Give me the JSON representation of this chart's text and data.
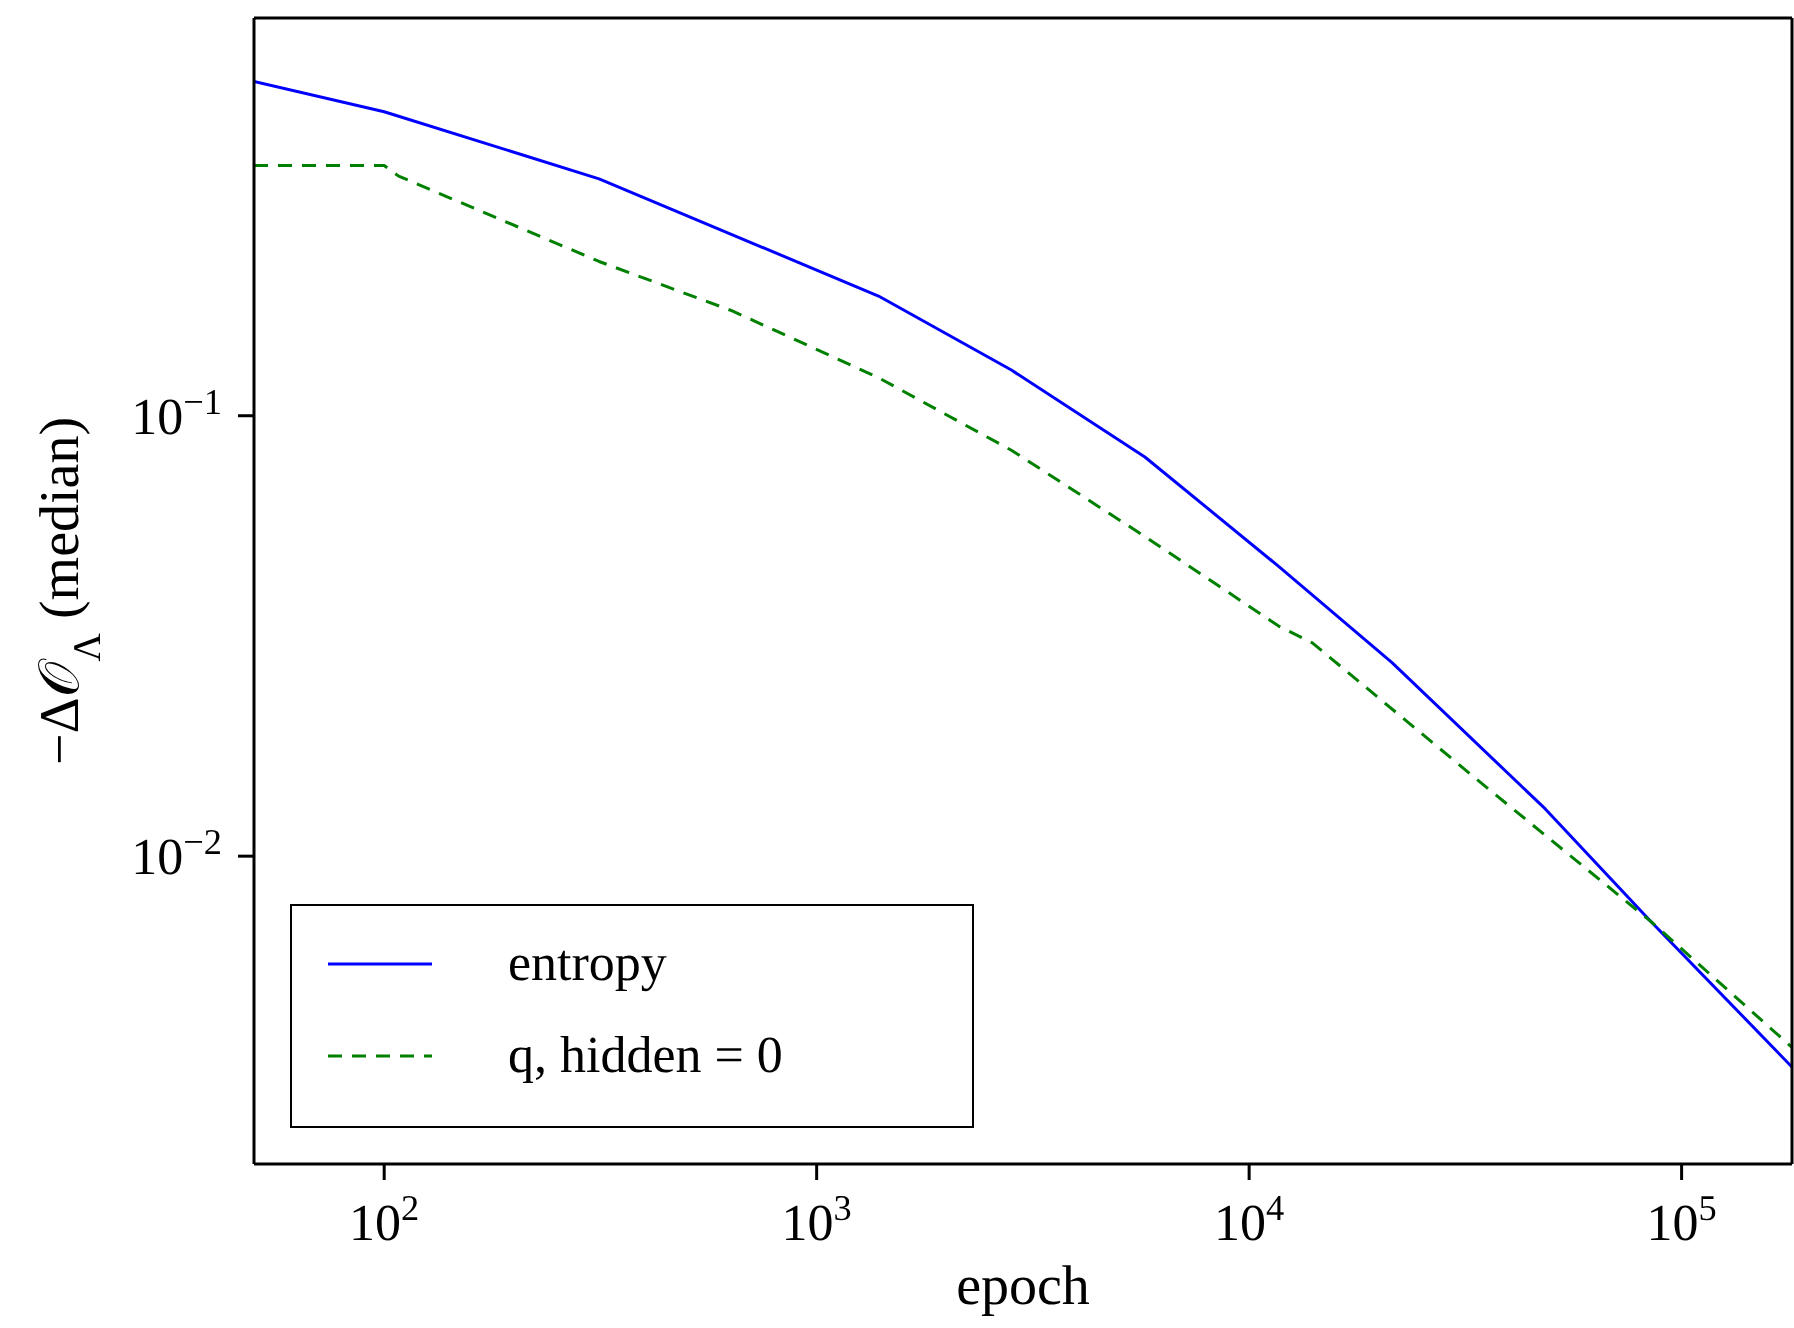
{
  "chart_data": {
    "type": "line",
    "xlabel": "epoch",
    "ylabel": "−Δ𝒪$_{Λ}$ (median)",
    "log": "xy",
    "xlim": [
      50,
      180000
    ],
    "ylim": [
      0.002,
      0.8
    ],
    "xticks": [
      {
        "value": 100,
        "label": "10$^{2}$"
      },
      {
        "value": 1000,
        "label": "10$^{3}$"
      },
      {
        "value": 10000,
        "label": "10$^{4}$"
      },
      {
        "value": 100000,
        "label": "10$^{5}$"
      }
    ],
    "yticks": [
      {
        "value": 0.1,
        "label": "10$^{−1}$"
      },
      {
        "value": 0.01,
        "label": "10$^{−2}$"
      }
    ],
    "legend": "bottom left",
    "marker": "none",
    "series": [
      {
        "name": "entropy",
        "color": "#0000ff",
        "line_style": "solid",
        "x": [
          50,
          100,
          314,
          1390,
          2820,
          5740,
          11700,
          21400,
          48400,
          85000,
          180000
        ],
        "values": [
          0.574,
          0.49,
          0.345,
          0.187,
          0.127,
          0.0806,
          0.0455,
          0.0275,
          0.0128,
          0.0071,
          0.00332
        ]
      },
      {
        "name": "q, hidden = 0",
        "color": "#008000",
        "line_style": "dashed",
        "x": [
          50,
          100,
          108,
          314,
          638,
          1390,
          2820,
          5740,
          11700,
          14000,
          34000,
          85000,
          180000
        ],
        "values": [
          0.37,
          0.37,
          0.35,
          0.224,
          0.173,
          0.122,
          0.0835,
          0.0532,
          0.0333,
          0.0305,
          0.0148,
          0.0071,
          0.00368
        ]
      }
    ]
  }
}
